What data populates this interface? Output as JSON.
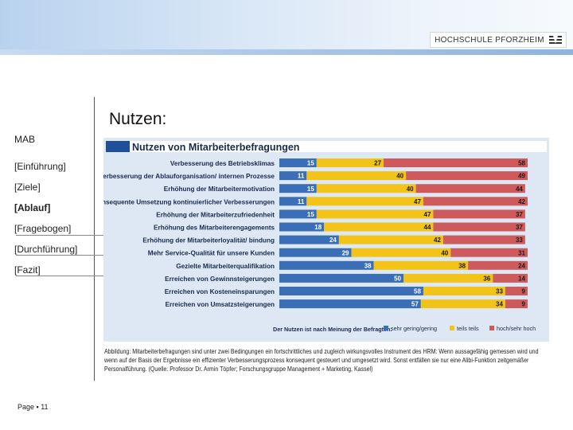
{
  "header": {
    "logo_text": "HOCHSCHULE PFORZHEIM"
  },
  "sidebar": {
    "title": "MAB",
    "items": [
      "[Einführung]",
      "[Ziele]",
      "[Ablauf]",
      "[Fragebogen]",
      "[Durchführung]",
      "[Fazit]"
    ],
    "active_index": 2
  },
  "page": {
    "title": "Nutzen:",
    "footer": "Page ▪ 11"
  },
  "colors": {
    "header_bar": "#1f4e9a",
    "series_low": "#3a6fb8",
    "series_mid": "#f2c319",
    "series_high": "#cf5a5c",
    "chart_bg": "#dde8f4"
  },
  "chart_data": {
    "type": "bar",
    "stacked": true,
    "orientation": "horizontal",
    "title": "Nutzen von Mitarbeiterbefragungen",
    "categories": [
      "Verbesserung des Betriebsklimas",
      "Verbesserung der Ablauforganisation/ internen Prozesse",
      "Erhöhung der Mitarbeitermotivation",
      "Konsequente Umsetzung kontinuierlicher Verbesserungen",
      "Erhöhung der Mitarbeiterzufriedenheit",
      "Erhöhung des Mitarbeiterengagements",
      "Erhöhung der Mitarbeiterloyalität/ bindung",
      "Mehr Service-Qualität für unsere Kunden",
      "Gezielte Mitarbeiterqualifikation",
      "Erreichen von Gewinnsteigerungen",
      "Erreichen von Kosteneinsparungen",
      "Erreichen von Umsatzsteigerungen"
    ],
    "series": [
      {
        "name": "sehr gering/gering",
        "values": [
          15,
          11,
          15,
          11,
          15,
          18,
          24,
          29,
          38,
          50,
          58,
          57
        ]
      },
      {
        "name": "teils teils",
        "values": [
          27,
          40,
          40,
          47,
          47,
          44,
          42,
          40,
          38,
          36,
          33,
          34
        ]
      },
      {
        "name": "hoch/sehr hoch",
        "values": [
          58,
          49,
          44,
          42,
          37,
          37,
          33,
          31,
          24,
          14,
          9,
          9
        ]
      }
    ],
    "legend_label": "Der Nutzen ist nach Meinung der Befragten:",
    "xlim": [
      0,
      100
    ]
  },
  "caption": "Abbildung: Mitarbeiterbefragungen sind unter zwei Bedingungen ein fortschrittliches und zugleich wirkungsvolles Instrument des HRM: Wenn aussagefähig gemessen wird und wenn auf der Basis der Ergebnisse ein effizienter Verbesserungsprozess konsequent gesteuert und umgesetzt wird. Sonst entfällen sie nur eine Alibi-Funktion zeitgemäßer Personalführung. (Quelle: Professor Dr. Armin Töpfer; Forschungsgruppe Management + Marketing, Kassel)"
}
